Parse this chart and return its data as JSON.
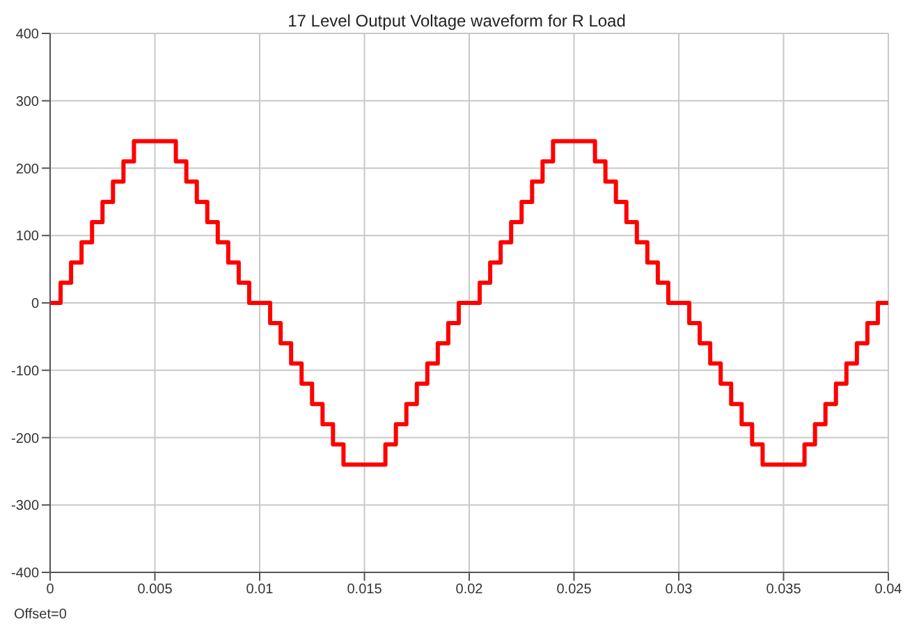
{
  "chart_data": {
    "type": "step",
    "title": "17 Level Output Voltage waveform for R Load",
    "annotations": [
      "Offset=0"
    ],
    "x": [
      0,
      0.0005,
      0.001,
      0.0015,
      0.002,
      0.0025,
      0.003,
      0.0035,
      0.004,
      0.006,
      0.0065,
      0.007,
      0.0075,
      0.008,
      0.0085,
      0.009,
      0.0095,
      0.0105,
      0.011,
      0.0115,
      0.012,
      0.0125,
      0.013,
      0.0135,
      0.014,
      0.016,
      0.0165,
      0.017,
      0.0175,
      0.018,
      0.0185,
      0.019,
      0.0195,
      0.0205,
      0.021,
      0.0215,
      0.022,
      0.0225,
      0.023,
      0.0235,
      0.024,
      0.026,
      0.0265,
      0.027,
      0.0275,
      0.028,
      0.0285,
      0.029,
      0.0295,
      0.0305,
      0.031,
      0.0315,
      0.032,
      0.0325,
      0.033,
      0.0335,
      0.034,
      0.036,
      0.0365,
      0.037,
      0.0375,
      0.038,
      0.0385,
      0.039,
      0.0395,
      0.04
    ],
    "series": [
      {
        "color": "#ff0000",
        "values": [
          0,
          30,
          60,
          90,
          120,
          150,
          180,
          210,
          240,
          210,
          180,
          150,
          120,
          90,
          60,
          30,
          0,
          -30,
          -60,
          -90,
          -120,
          -150,
          -180,
          -210,
          -240,
          -210,
          -180,
          -150,
          -120,
          -90,
          -60,
          -30,
          0,
          30,
          60,
          90,
          120,
          150,
          180,
          210,
          240,
          210,
          180,
          150,
          120,
          90,
          60,
          30,
          0,
          -30,
          -60,
          -90,
          -120,
          -150,
          -180,
          -210,
          -240,
          -210,
          -180,
          -150,
          -120,
          -90,
          -60,
          -30,
          0,
          0
        ]
      }
    ],
    "xlim": [
      0,
      0.04
    ],
    "xticks": [
      0,
      0.005,
      0.01,
      0.015,
      0.02,
      0.025,
      0.03,
      0.035,
      0.04
    ],
    "ylim": [
      -400,
      400
    ],
    "yticks": [
      -400,
      -300,
      -200,
      -100,
      0,
      100,
      200,
      300,
      400
    ],
    "grid": true,
    "legend": false,
    "marker": "none",
    "line_style": "solid"
  }
}
